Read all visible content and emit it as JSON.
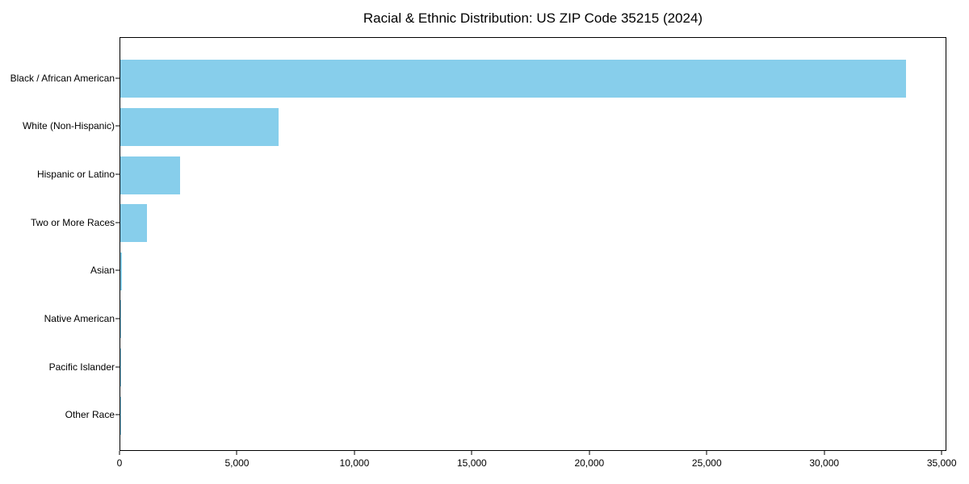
{
  "chart_data": {
    "type": "bar",
    "orientation": "horizontal",
    "title": "Racial & Ethnic Distribution: US ZIP Code 35215 (2024)",
    "categories": [
      "Black / African American",
      "White (Non-Hispanic)",
      "Hispanic or Latino",
      "Two or More Races",
      "Asian",
      "Native American",
      "Pacific Islander",
      "Other Race"
    ],
    "values": [
      33500,
      6750,
      2550,
      1120,
      60,
      30,
      10,
      20
    ],
    "xlabel": "",
    "ylabel": "",
    "xlim": [
      0,
      35200
    ],
    "xticks": [
      0,
      5000,
      10000,
      15000,
      20000,
      25000,
      30000,
      35000
    ],
    "xtick_labels": [
      "0",
      "5,000",
      "10,000",
      "15,000",
      "20,000",
      "25,000",
      "30,000",
      "35,000"
    ],
    "bar_color": "#87CEEB",
    "axis_color": "#000000",
    "text_color": "#000000",
    "grid": false,
    "legend": "none"
  }
}
